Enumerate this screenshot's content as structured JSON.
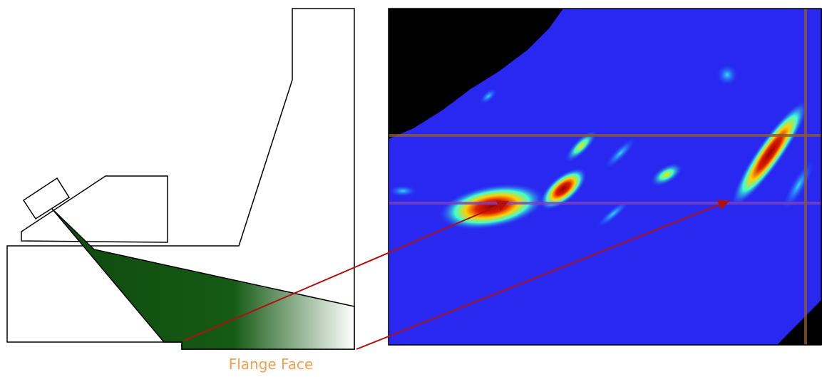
{
  "labels": {
    "flange_face": "Flange Face"
  }
}
